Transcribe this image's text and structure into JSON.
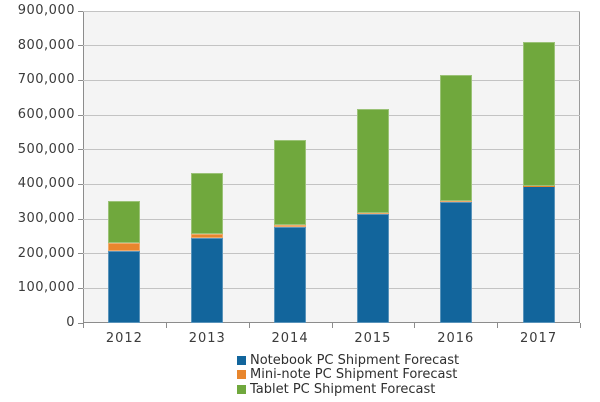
{
  "chart_data": {
    "type": "bar",
    "stacked": true,
    "orientation": "vertical",
    "categories": [
      "2012",
      "2013",
      "2014",
      "2015",
      "2016",
      "2017"
    ],
    "series": [
      {
        "name": "Notebook PC Shipment Forecast",
        "color": "#12659c",
        "values": [
          209000,
          245000,
          278000,
          314000,
          350000,
          394000
        ]
      },
      {
        "name": "Mini-note PC Shipment Forecast",
        "color": "#e8862d",
        "values": [
          22000,
          12000,
          6000,
          3000,
          2000,
          1000
        ]
      },
      {
        "name": "Tablet PC Shipment Forecast",
        "color": "#70a83d",
        "values": [
          121000,
          175000,
          244000,
          300000,
          364000,
          416000
        ]
      }
    ],
    "title": "",
    "xlabel": "",
    "ylabel": "",
    "ylim": [
      0,
      900000
    ],
    "ytick_step": 100000,
    "ytick_labels": [
      "0",
      "100,000",
      "200,000",
      "300,000",
      "400,000",
      "500,000",
      "600,000",
      "700,000",
      "800,000",
      "900,000"
    ],
    "grid": true,
    "legend_position": "bottom"
  },
  "colors": {
    "plot_background": "#f4f4f4",
    "gridline": "#c3c3c3",
    "axis": "#8c8c8c",
    "tick_text": "#3b3b3b",
    "notebook_blue": "#12659c",
    "mini_note_orange": "#e8862d",
    "tablet_green": "#70a83d"
  }
}
